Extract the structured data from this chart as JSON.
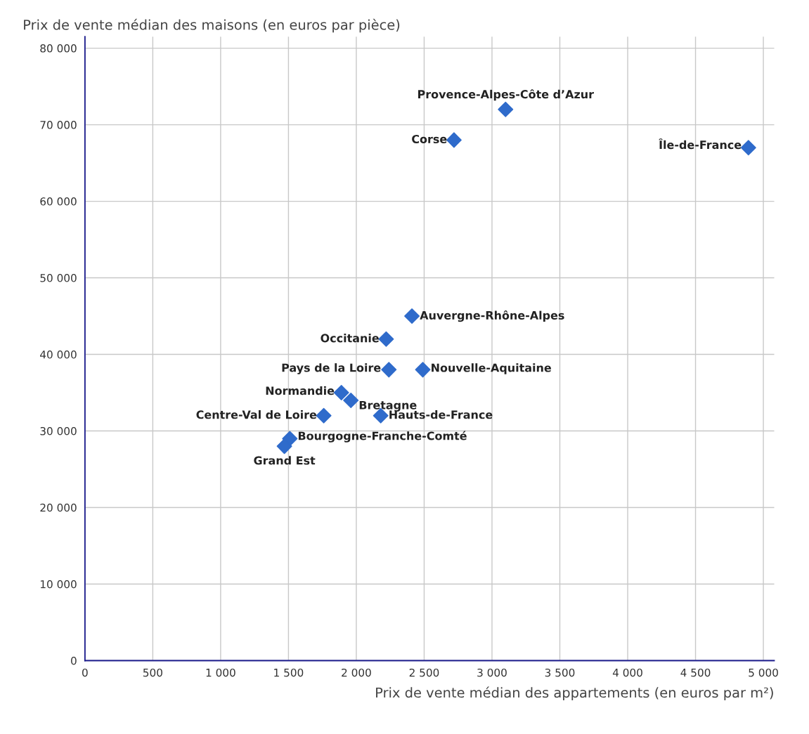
{
  "chart_data": {
    "type": "scatter",
    "xlabel": "Prix de vente médian des appartements (en euros par m²)",
    "ylabel": "Prix de vente médian des maisons (en euros par pièce)",
    "x": [
      3100,
      2720,
      4890,
      2410,
      2220,
      2240,
      2490,
      1890,
      1960,
      1760,
      2180,
      1510,
      1470
    ],
    "series": [
      {
        "color": "#2f6bcb",
        "values": [
          72000,
          68000,
          67000,
          45000,
          42000,
          38000,
          38000,
          35000,
          34000,
          32000,
          32000,
          29000,
          28000
        ]
      }
    ],
    "annotations": [
      {
        "text": "Provence-Alpes-Côte d’Azur",
        "x": 3100,
        "y": 72000
      },
      {
        "text": "Corse",
        "x": 2720,
        "y": 68000
      },
      {
        "text": "Île-de-France",
        "x": 4890,
        "y": 67000
      },
      {
        "text": "Auvergne-Rhône-Alpes",
        "x": 2410,
        "y": 45000
      },
      {
        "text": "Occitanie",
        "x": 2220,
        "y": 42000
      },
      {
        "text": "Pays de la Loire",
        "x": 2240,
        "y": 38000
      },
      {
        "text": "Nouvelle-Aquitaine",
        "x": 2490,
        "y": 38000
      },
      {
        "text": "Normandie",
        "x": 1890,
        "y": 35000
      },
      {
        "text": "Bretagne",
        "x": 1960,
        "y": 34000
      },
      {
        "text": "Centre-Val de Loire",
        "x": 1760,
        "y": 32000
      },
      {
        "text": "Hauts-de-France",
        "x": 2180,
        "y": 32000
      },
      {
        "text": "Bourgogne-Franche-Comté",
        "x": 1510,
        "y": 29000
      },
      {
        "text": "Grand Est",
        "x": 1470,
        "y": 28000
      }
    ],
    "xlim": [
      0,
      5080
    ],
    "ylim": [
      0,
      81500
    ],
    "xticks": [
      0,
      500,
      {
        "value": 1000,
        "label": "1 000"
      },
      {
        "value": 1500,
        "label": "1 500"
      },
      {
        "value": 2000,
        "label": "2 000"
      },
      {
        "value": 2500,
        "label": "2 500"
      },
      {
        "value": 3000,
        "label": "3 000"
      },
      {
        "value": 3500,
        "label": "3 500"
      },
      {
        "value": 4000,
        "label": "4 000"
      },
      {
        "value": 4500,
        "label": "4 500"
      },
      {
        "value": 5000,
        "label": "5 000"
      }
    ],
    "yticks": [
      0,
      {
        "value": 10000,
        "label": "10 000"
      },
      {
        "value": 20000,
        "label": "20 000"
      },
      {
        "value": 30000,
        "label": "30 000"
      },
      {
        "value": 40000,
        "label": "40 000"
      },
      {
        "value": 50000,
        "label": "50 000"
      },
      {
        "value": 60000,
        "label": "60 000"
      },
      {
        "value": 70000,
        "label": "70 000"
      },
      {
        "value": 80000,
        "label": "80 000"
      }
    ],
    "grid": true,
    "marker": "diamond",
    "legend": false
  }
}
